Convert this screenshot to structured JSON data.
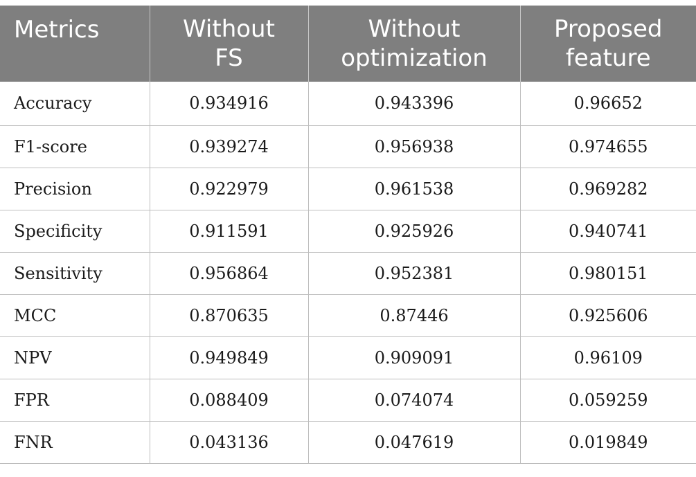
{
  "table": {
    "headers": [
      [
        "Metrics"
      ],
      [
        "Without",
        "FS"
      ],
      [
        "Without",
        "optimization"
      ],
      [
        "Proposed",
        "feature"
      ]
    ],
    "rows": [
      [
        "Accuracy",
        "0.934916",
        "0.943396",
        "0.96652"
      ],
      [
        "F1-score",
        "0.939274",
        "0.956938",
        "0.974655"
      ],
      [
        "Precision",
        "0.922979",
        "0.961538",
        "0.969282"
      ],
      [
        "Specificity",
        "0.911591",
        "0.925926",
        "0.940741"
      ],
      [
        "Sensitivity",
        "0.956864",
        "0.952381",
        "0.980151"
      ],
      [
        "MCC",
        "0.870635",
        "0.87446",
        "0.925606"
      ],
      [
        "NPV",
        "0.949849",
        "0.909091",
        "0.96109"
      ],
      [
        "FPR",
        "0.088409",
        "0.074074",
        "0.059259"
      ],
      [
        "FNR",
        "0.043136",
        "0.047619",
        "0.019849"
      ]
    ]
  },
  "colors": {
    "header_background": "#7f7f7f",
    "header_text": "#ffffff",
    "grid_lines": "#bdbdbd"
  }
}
